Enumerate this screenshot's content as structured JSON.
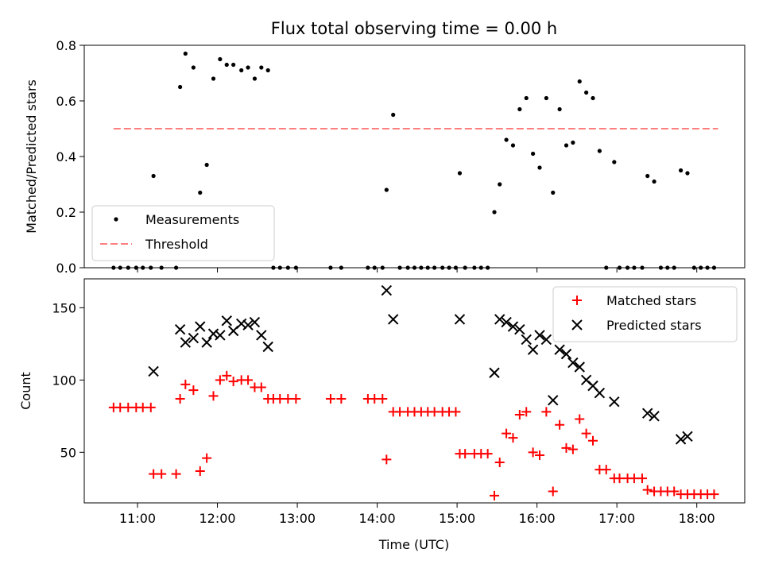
{
  "chart_data": [
    {
      "type": "scatter",
      "title": "Flux total observing time = 0.00 h",
      "ylabel": "Matched/Predicted stars",
      "xlabel": "",
      "xlim": [
        "10:20",
        "18:36"
      ],
      "ylim": [
        0,
        0.8
      ],
      "yticks": [
        "0.0",
        "0.2",
        "0.4",
        "0.6",
        "0.8"
      ],
      "xticks": [
        "11:00",
        "12:00",
        "13:00",
        "14:00",
        "15:00",
        "16:00",
        "17:00",
        "18:00"
      ],
      "legend": {
        "position": "lower-left"
      },
      "series": [
        {
          "name": "Measurements",
          "marker": "dot",
          "color": "#000000",
          "points": [
            [
              "10:42",
              0
            ],
            [
              "10:47",
              0
            ],
            [
              "10:53",
              0
            ],
            [
              "10:59",
              0
            ],
            [
              "11:04",
              0
            ],
            [
              "11:10",
              0
            ],
            [
              "11:12",
              0.33
            ],
            [
              "11:18",
              0
            ],
            [
              "11:29",
              0
            ],
            [
              "11:32",
              0.65
            ],
            [
              "11:36",
              0.77
            ],
            [
              "11:42",
              0.72
            ],
            [
              "11:47",
              0.27
            ],
            [
              "11:52",
              0.37
            ],
            [
              "11:57",
              0.68
            ],
            [
              "12:02",
              0.75
            ],
            [
              "12:07",
              0.73
            ],
            [
              "12:12",
              0.73
            ],
            [
              "12:18",
              0.71
            ],
            [
              "12:23",
              0.72
            ],
            [
              "12:28",
              0.68
            ],
            [
              "12:33",
              0.72
            ],
            [
              "12:38",
              0.71
            ],
            [
              "12:42",
              0
            ],
            [
              "12:47",
              0
            ],
            [
              "12:53",
              0
            ],
            [
              "12:59",
              0
            ],
            [
              "13:25",
              0
            ],
            [
              "13:33",
              0
            ],
            [
              "13:53",
              0
            ],
            [
              "13:58",
              0
            ],
            [
              "14:04",
              0
            ],
            [
              "14:07",
              0.28
            ],
            [
              "14:12",
              0.55
            ],
            [
              "14:17",
              0
            ],
            [
              "14:23",
              0
            ],
            [
              "14:28",
              0
            ],
            [
              "14:33",
              0
            ],
            [
              "14:38",
              0
            ],
            [
              "14:43",
              0
            ],
            [
              "14:49",
              0
            ],
            [
              "14:54",
              0
            ],
            [
              "14:59",
              0
            ],
            [
              "15:02",
              0.34
            ],
            [
              "15:06",
              0
            ],
            [
              "15:13",
              0
            ],
            [
              "15:18",
              0
            ],
            [
              "15:23",
              0
            ],
            [
              "15:28",
              0.2
            ],
            [
              "15:32",
              0.3
            ],
            [
              "15:37",
              0.46
            ],
            [
              "15:42",
              0.44
            ],
            [
              "15:47",
              0.57
            ],
            [
              "15:52",
              0.61
            ],
            [
              "15:57",
              0.41
            ],
            [
              "16:02",
              0.36
            ],
            [
              "16:07",
              0.61
            ],
            [
              "16:12",
              0.27
            ],
            [
              "16:17",
              0.57
            ],
            [
              "16:22",
              0.44
            ],
            [
              "16:27",
              0.45
            ],
            [
              "16:32",
              0.67
            ],
            [
              "16:37",
              0.63
            ],
            [
              "16:42",
              0.61
            ],
            [
              "16:47",
              0.42
            ],
            [
              "16:52",
              0
            ],
            [
              "16:58",
              0.38
            ],
            [
              "17:02",
              0
            ],
            [
              "17:08",
              0
            ],
            [
              "17:13",
              0
            ],
            [
              "17:19",
              0
            ],
            [
              "17:23",
              0.33
            ],
            [
              "17:28",
              0.31
            ],
            [
              "17:33",
              0
            ],
            [
              "17:38",
              0
            ],
            [
              "17:43",
              0
            ],
            [
              "17:48",
              0.35
            ],
            [
              "17:53",
              0.34
            ],
            [
              "17:58",
              0
            ],
            [
              "18:03",
              0
            ],
            [
              "18:08",
              0
            ],
            [
              "18:13",
              0
            ]
          ]
        },
        {
          "name": "Threshold",
          "marker": "dashed-line",
          "color": "#ff7f7f",
          "points": [
            [
              "10:42",
              0.5
            ],
            [
              "18:16",
              0.5
            ]
          ]
        }
      ]
    },
    {
      "type": "scatter",
      "title": "",
      "ylabel": "Count",
      "xlabel": "Time (UTC)",
      "xlim": [
        "10:20",
        "18:36"
      ],
      "ylim": [
        15,
        170
      ],
      "yticks": [
        "50",
        "100",
        "150"
      ],
      "xticks": [
        "11:00",
        "12:00",
        "13:00",
        "14:00",
        "15:00",
        "16:00",
        "17:00",
        "18:00"
      ],
      "legend": {
        "position": "top-right"
      },
      "series": [
        {
          "name": "Matched stars",
          "marker": "plus",
          "color": "#ff0000",
          "points": [
            [
              "10:42",
              81
            ],
            [
              "10:47",
              81
            ],
            [
              "10:53",
              81
            ],
            [
              "10:59",
              81
            ],
            [
              "11:04",
              81
            ],
            [
              "11:10",
              81
            ],
            [
              "11:12",
              35
            ],
            [
              "11:18",
              35
            ],
            [
              "11:29",
              35
            ],
            [
              "11:32",
              87
            ],
            [
              "11:36",
              97
            ],
            [
              "11:42",
              93
            ],
            [
              "11:47",
              37
            ],
            [
              "11:52",
              46
            ],
            [
              "11:57",
              89
            ],
            [
              "12:02",
              100
            ],
            [
              "12:07",
              103
            ],
            [
              "12:12",
              99
            ],
            [
              "12:18",
              100
            ],
            [
              "12:23",
              100
            ],
            [
              "12:28",
              95
            ],
            [
              "12:33",
              95
            ],
            [
              "12:38",
              87
            ],
            [
              "12:42",
              87
            ],
            [
              "12:47",
              87
            ],
            [
              "12:53",
              87
            ],
            [
              "12:59",
              87
            ],
            [
              "13:25",
              87
            ],
            [
              "13:33",
              87
            ],
            [
              "13:53",
              87
            ],
            [
              "13:58",
              87
            ],
            [
              "14:04",
              87
            ],
            [
              "14:07",
              45
            ],
            [
              "14:12",
              78
            ],
            [
              "14:17",
              78
            ],
            [
              "14:23",
              78
            ],
            [
              "14:28",
              78
            ],
            [
              "14:33",
              78
            ],
            [
              "14:38",
              78
            ],
            [
              "14:43",
              78
            ],
            [
              "14:49",
              78
            ],
            [
              "14:54",
              78
            ],
            [
              "14:59",
              78
            ],
            [
              "15:02",
              49
            ],
            [
              "15:06",
              49
            ],
            [
              "15:13",
              49
            ],
            [
              "15:18",
              49
            ],
            [
              "15:23",
              49
            ],
            [
              "15:28",
              20
            ],
            [
              "15:32",
              43
            ],
            [
              "15:37",
              63
            ],
            [
              "15:42",
              60
            ],
            [
              "15:47",
              76
            ],
            [
              "15:52",
              78
            ],
            [
              "15:57",
              50
            ],
            [
              "16:02",
              48
            ],
            [
              "16:07",
              78
            ],
            [
              "16:12",
              23
            ],
            [
              "16:17",
              69
            ],
            [
              "16:22",
              53
            ],
            [
              "16:27",
              52
            ],
            [
              "16:32",
              73
            ],
            [
              "16:37",
              63
            ],
            [
              "16:42",
              58
            ],
            [
              "16:47",
              38
            ],
            [
              "16:52",
              38
            ],
            [
              "16:58",
              32
            ],
            [
              "17:02",
              32
            ],
            [
              "17:08",
              32
            ],
            [
              "17:13",
              32
            ],
            [
              "17:19",
              32
            ],
            [
              "17:23",
              24
            ],
            [
              "17:28",
              23
            ],
            [
              "17:33",
              23
            ],
            [
              "17:38",
              23
            ],
            [
              "17:43",
              23
            ],
            [
              "17:48",
              21
            ],
            [
              "17:53",
              21
            ],
            [
              "17:58",
              21
            ],
            [
              "18:03",
              21
            ],
            [
              "18:08",
              21
            ],
            [
              "18:13",
              21
            ]
          ]
        },
        {
          "name": "Predicted stars",
          "marker": "x",
          "color": "#000000",
          "points": [
            [
              "11:12",
              106
            ],
            [
              "11:32",
              135
            ],
            [
              "11:36",
              126
            ],
            [
              "11:42",
              129
            ],
            [
              "11:47",
              137
            ],
            [
              "11:52",
              126
            ],
            [
              "11:57",
              132
            ],
            [
              "12:02",
              131
            ],
            [
              "12:07",
              141
            ],
            [
              "12:12",
              134
            ],
            [
              "12:18",
              139
            ],
            [
              "12:23",
              138
            ],
            [
              "12:28",
              140
            ],
            [
              "12:33",
              131
            ],
            [
              "12:38",
              123
            ],
            [
              "14:07",
              162
            ],
            [
              "14:12",
              142
            ],
            [
              "15:02",
              142
            ],
            [
              "15:28",
              105
            ],
            [
              "15:32",
              142
            ],
            [
              "15:37",
              140
            ],
            [
              "15:42",
              137
            ],
            [
              "15:47",
              135
            ],
            [
              "15:52",
              128
            ],
            [
              "15:57",
              121
            ],
            [
              "16:02",
              131
            ],
            [
              "16:07",
              128
            ],
            [
              "16:12",
              86
            ],
            [
              "16:17",
              121
            ],
            [
              "16:22",
              118
            ],
            [
              "16:27",
              112
            ],
            [
              "16:32",
              109
            ],
            [
              "16:37",
              100
            ],
            [
              "16:42",
              96
            ],
            [
              "16:47",
              91
            ],
            [
              "16:58",
              85
            ],
            [
              "17:23",
              77
            ],
            [
              "17:28",
              75
            ],
            [
              "17:48",
              59
            ],
            [
              "17:53",
              61
            ]
          ]
        }
      ]
    }
  ]
}
